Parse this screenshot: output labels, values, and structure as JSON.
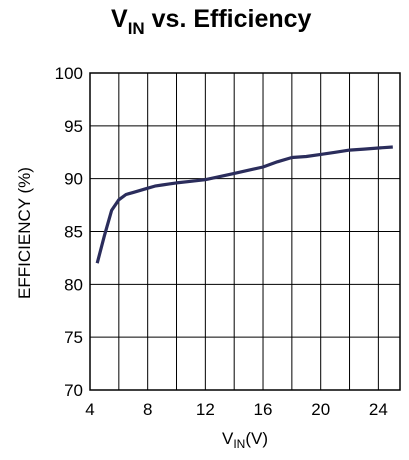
{
  "chart_data": {
    "type": "line",
    "title": {
      "main": "V",
      "sub": "IN",
      "rest": " vs. Efficiency"
    },
    "xlabel": {
      "main": "V",
      "sub": "IN",
      "rest": "(V)"
    },
    "ylabel": "EFFICIENCY (%)",
    "xlim": [
      4,
      25.5
    ],
    "ylim": [
      70,
      100
    ],
    "x_ticks": [
      4,
      8,
      12,
      16,
      20,
      24
    ],
    "x_tick_labels": [
      "4",
      "8",
      "12",
      "16",
      "20",
      "24"
    ],
    "y_ticks": [
      70,
      75,
      80,
      85,
      90,
      95,
      100
    ],
    "y_tick_labels": [
      "70",
      "75",
      "80",
      "85",
      "90",
      "95",
      "100"
    ],
    "x_gridlines": [
      4,
      6,
      8,
      10,
      12,
      14,
      16,
      18,
      20,
      22,
      24
    ],
    "y_gridlines": [
      70,
      75,
      80,
      85,
      90,
      95,
      100
    ],
    "grid": true,
    "line_color": "#2b2d5c",
    "grid_color": "#000000",
    "series": [
      {
        "x": [
          4.5,
          5.0,
          5.5,
          6.0,
          6.5,
          7.0,
          7.5,
          8.0,
          8.5,
          9.0,
          9.5,
          10.0,
          11.0,
          12.0,
          13.0,
          14.0,
          15.0,
          16.0,
          17.0,
          18.0,
          19.0,
          20.0,
          21.0,
          22.0,
          23.0,
          24.0,
          25.0
        ],
        "y": [
          82.0,
          84.6,
          87.0,
          88.0,
          88.5,
          88.7,
          88.9,
          89.1,
          89.3,
          89.4,
          89.5,
          89.6,
          89.75,
          89.9,
          90.2,
          90.5,
          90.8,
          91.1,
          91.6,
          92.0,
          92.1,
          92.3,
          92.5,
          92.7,
          92.8,
          92.9,
          93.0
        ]
      }
    ]
  }
}
